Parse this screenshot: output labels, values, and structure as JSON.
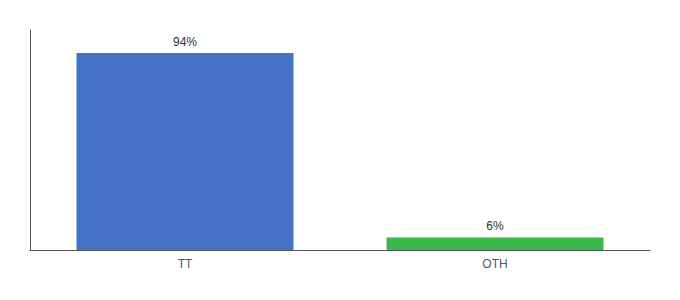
{
  "chart_data": {
    "type": "bar",
    "categories": [
      "TT",
      "OTH"
    ],
    "values": [
      94,
      6
    ],
    "value_labels": [
      "94%",
      "6%"
    ],
    "colors": [
      "#4472c4",
      "#3cb84a"
    ],
    "ylim": [
      0,
      105
    ],
    "grid": false,
    "data_labels": true,
    "tick_labels": "x"
  }
}
